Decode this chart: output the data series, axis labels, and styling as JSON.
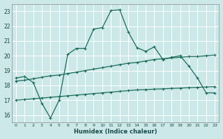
{
  "xlabel": "Humidex (Indice chaleur)",
  "background_color": "#cce8e8",
  "grid_color": "#b0d4d4",
  "line_color": "#1a6b5a",
  "series1_x": [
    0,
    1,
    2,
    3,
    4,
    5,
    6,
    7,
    8,
    9,
    10,
    11,
    12,
    13,
    14,
    15,
    16,
    17,
    18,
    19,
    20,
    21,
    22,
    23
  ],
  "series1_y": [
    18.5,
    18.6,
    18.2,
    16.8,
    15.8,
    17.0,
    20.1,
    20.5,
    20.5,
    21.8,
    21.9,
    23.05,
    23.1,
    21.6,
    20.55,
    20.3,
    20.6,
    19.75,
    19.9,
    20.0,
    19.3,
    18.5,
    17.5,
    17.5
  ],
  "series2_x": [
    0,
    1,
    2,
    3,
    4,
    5,
    6,
    7,
    8,
    9,
    10,
    11,
    12,
    13,
    14,
    15,
    16,
    17,
    18,
    19,
    20,
    21,
    22,
    23
  ],
  "series2_y": [
    18.3,
    18.35,
    18.45,
    18.55,
    18.65,
    18.7,
    18.8,
    18.9,
    19.0,
    19.1,
    19.2,
    19.3,
    19.4,
    19.5,
    19.55,
    19.65,
    19.75,
    19.8,
    19.85,
    19.9,
    19.95,
    19.95,
    20.0,
    20.05
  ],
  "series3_x": [
    0,
    1,
    2,
    3,
    4,
    5,
    6,
    7,
    8,
    9,
    10,
    11,
    12,
    13,
    14,
    15,
    16,
    17,
    18,
    19,
    20,
    21,
    22,
    23
  ],
  "series3_y": [
    17.0,
    17.05,
    17.1,
    17.15,
    17.2,
    17.25,
    17.3,
    17.35,
    17.4,
    17.45,
    17.5,
    17.55,
    17.6,
    17.65,
    17.7,
    17.72,
    17.75,
    17.77,
    17.8,
    17.82,
    17.85,
    17.87,
    17.9,
    17.92
  ],
  "ylim": [
    15.5,
    23.5
  ],
  "xlim": [
    -0.5,
    23.5
  ],
  "yticks": [
    16,
    17,
    18,
    19,
    20,
    21,
    22,
    23
  ],
  "xticks": [
    0,
    1,
    2,
    3,
    4,
    5,
    6,
    7,
    8,
    9,
    10,
    11,
    12,
    13,
    14,
    15,
    16,
    17,
    18,
    19,
    20,
    21,
    22,
    23
  ]
}
